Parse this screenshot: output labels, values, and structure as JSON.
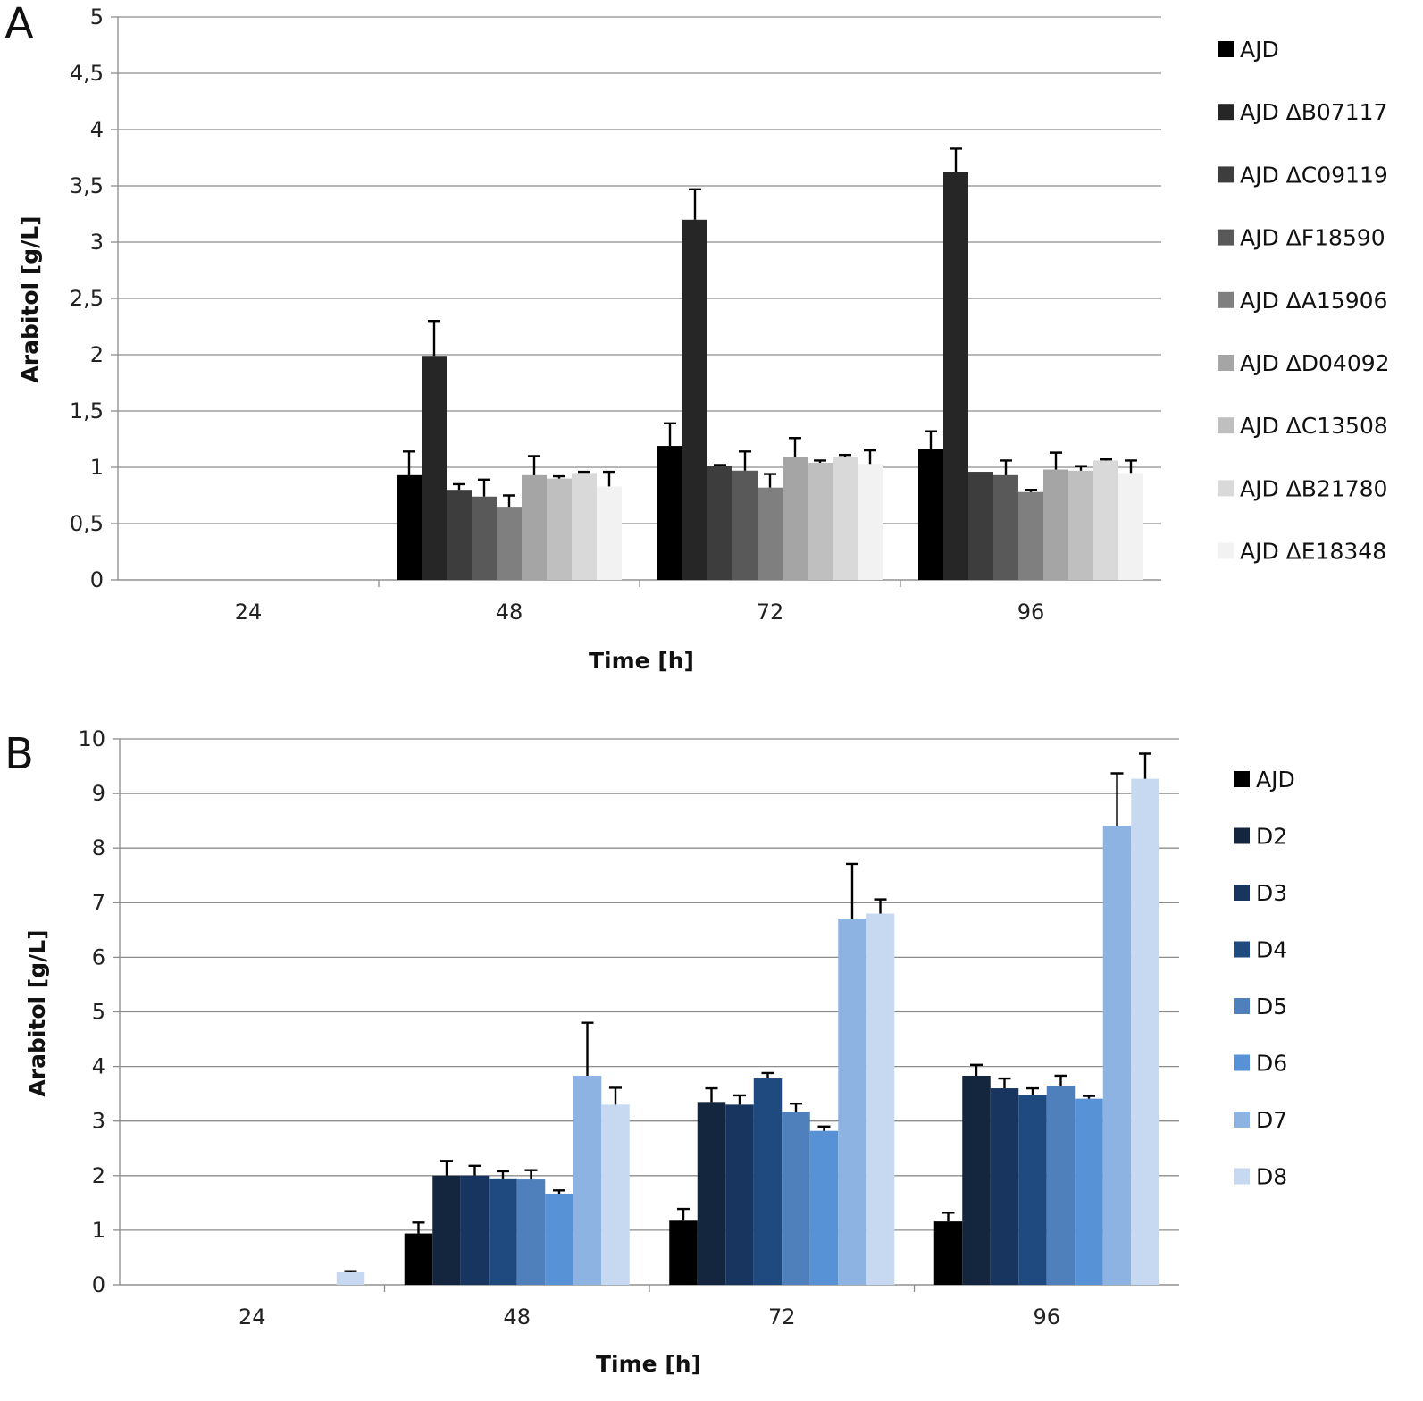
{
  "chart_data": [
    {
      "panel": "A",
      "type": "bar",
      "xlabel": "Time [h]",
      "ylabel": "Arabitol [g/L]",
      "ylim": [
        0,
        5
      ],
      "yticks": [
        "0",
        "0,5",
        "1",
        "1,5",
        "2",
        "2,5",
        "3",
        "3,5",
        "4",
        "4,5",
        "5"
      ],
      "grid": true,
      "legend": "right",
      "categories": [
        "24",
        "48",
        "72",
        "96"
      ],
      "series": [
        {
          "name": "AJD",
          "color": "#000000",
          "values": [
            0,
            0.93,
            1.19,
            1.16
          ],
          "errors": [
            0,
            0.21,
            0.2,
            0.16
          ]
        },
        {
          "name": "AJD ΔB07117",
          "color": "#262626",
          "values": [
            0,
            1.99,
            3.2,
            3.62
          ],
          "errors": [
            0,
            0.31,
            0.27,
            0.21
          ]
        },
        {
          "name": "AJD ΔC09119",
          "color": "#3d3d3d",
          "values": [
            0,
            0.8,
            1.01,
            0.96
          ],
          "errors": [
            0,
            0.05,
            0.01,
            0
          ]
        },
        {
          "name": "AJD ΔF18590",
          "color": "#595959",
          "values": [
            0,
            0.74,
            0.97,
            0.93
          ],
          "errors": [
            0,
            0.15,
            0.17,
            0.13
          ]
        },
        {
          "name": "AJD ΔA15906",
          "color": "#7f7f7f",
          "values": [
            0,
            0.65,
            0.82,
            0.78
          ],
          "errors": [
            0,
            0.1,
            0.12,
            0.02
          ]
        },
        {
          "name": "AJD ΔD04092",
          "color": "#a5a5a5",
          "values": [
            0,
            0.93,
            1.09,
            0.98
          ],
          "errors": [
            0,
            0.17,
            0.17,
            0.15
          ]
        },
        {
          "name": "AJD ΔC13508",
          "color": "#bfbfbf",
          "values": [
            0,
            0.9,
            1.04,
            0.97
          ],
          "errors": [
            0,
            0.02,
            0.02,
            0.04
          ]
        },
        {
          "name": "AJD ΔB21780",
          "color": "#d9d9d9",
          "values": [
            0,
            0.95,
            1.09,
            1.06
          ],
          "errors": [
            0,
            0.01,
            0.02,
            0.01
          ]
        },
        {
          "name": "AJD ΔE18348",
          "color": "#f2f2f2",
          "values": [
            0,
            0.83,
            1.03,
            0.95
          ],
          "errors": [
            0,
            0.13,
            0.12,
            0.11
          ]
        }
      ]
    },
    {
      "panel": "B",
      "type": "bar",
      "xlabel": "Time [h]",
      "ylabel": "Arabitol [g/L]",
      "ylim": [
        0,
        10
      ],
      "yticks": [
        "0",
        "1",
        "2",
        "3",
        "4",
        "5",
        "6",
        "7",
        "8",
        "9",
        "10"
      ],
      "grid": true,
      "legend": "right",
      "categories": [
        "24",
        "48",
        "72",
        "96"
      ],
      "series": [
        {
          "name": "AJD",
          "color": "#000000",
          "values": [
            0,
            0.94,
            1.19,
            1.16
          ],
          "errors": [
            0,
            0.2,
            0.2,
            0.16
          ]
        },
        {
          "name": "D2",
          "color": "#14253e",
          "values": [
            0,
            2.0,
            3.35,
            3.83
          ],
          "errors": [
            0,
            0.27,
            0.25,
            0.2
          ]
        },
        {
          "name": "D3",
          "color": "#18355f",
          "values": [
            0,
            2.0,
            3.3,
            3.6
          ],
          "errors": [
            0,
            0.18,
            0.17,
            0.18
          ]
        },
        {
          "name": "D4",
          "color": "#1f4a80",
          "values": [
            0,
            1.95,
            3.78,
            3.48
          ],
          "errors": [
            0,
            0.13,
            0.1,
            0.12
          ]
        },
        {
          "name": "D5",
          "color": "#4f80bb",
          "values": [
            0,
            1.93,
            3.17,
            3.65
          ],
          "errors": [
            0,
            0.17,
            0.15,
            0.18
          ]
        },
        {
          "name": "D6",
          "color": "#5791d6",
          "values": [
            0,
            1.67,
            2.82,
            3.41
          ],
          "errors": [
            0,
            0.06,
            0.08,
            0.05
          ]
        },
        {
          "name": "D7",
          "color": "#8db3e2",
          "values": [
            0,
            3.83,
            6.71,
            8.41
          ],
          "errors": [
            0,
            0.97,
            1.0,
            0.96
          ]
        },
        {
          "name": "D8",
          "color": "#c6d9f0",
          "values": [
            0.23,
            3.3,
            6.8,
            9.27
          ],
          "errors": [
            0.02,
            0.31,
            0.26,
            0.46
          ]
        }
      ]
    }
  ],
  "panels": {
    "a": {
      "letter": "A"
    },
    "b": {
      "letter": "B"
    }
  }
}
